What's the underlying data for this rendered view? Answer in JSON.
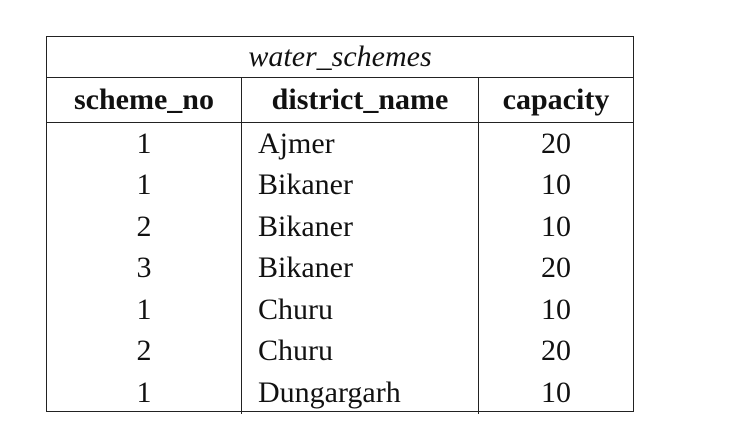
{
  "table": {
    "caption": "water_schemes",
    "headers": [
      "scheme_no",
      "district_name",
      "capacity"
    ],
    "rows": [
      [
        "1",
        "Ajmer",
        "20"
      ],
      [
        "1",
        "Bikaner",
        "10"
      ],
      [
        "2",
        "Bikaner",
        "10"
      ],
      [
        "3",
        "Bikaner",
        "20"
      ],
      [
        "1",
        "Churu",
        "10"
      ],
      [
        "2",
        "Churu",
        "20"
      ],
      [
        "1",
        "Dungargarh",
        "10"
      ]
    ]
  }
}
